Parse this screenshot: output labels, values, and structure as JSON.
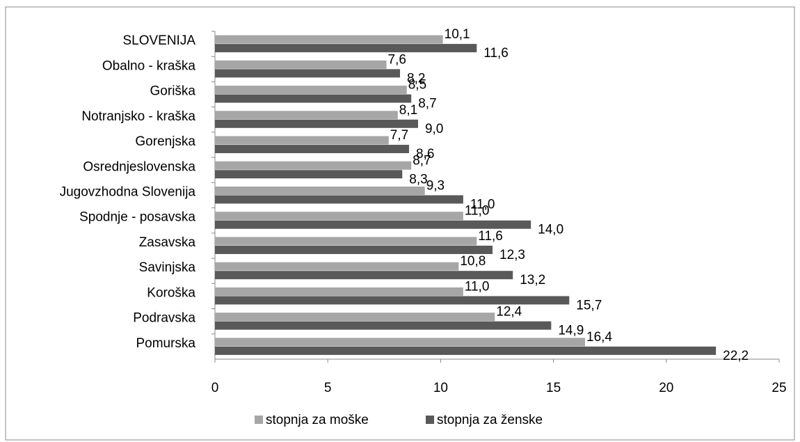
{
  "chart_data": {
    "type": "bar",
    "orientation": "horizontal",
    "categories": [
      "SLOVENIJA",
      "Obalno - kraška",
      "Goriška",
      "Notranjsko - kraška",
      "Gorenjska",
      "Osrednjeslovenska",
      "Jugovzhodna Slovenija",
      "Spodnje - posavska",
      "Zasavska",
      "Savinjska",
      "Koroška",
      "Podravska",
      "Pomurska"
    ],
    "series": [
      {
        "name": "stopnja za moške",
        "color": "#a6a6a6",
        "values": [
          10.1,
          7.6,
          8.5,
          8.1,
          7.7,
          8.7,
          9.3,
          11.0,
          11.6,
          10.8,
          11.0,
          12.4,
          16.4
        ],
        "value_labels": [
          "10,1",
          "7,6",
          "8,5",
          "8,1",
          "7,7",
          "8,7",
          "9,3",
          "11,0",
          "11,6",
          "10,8",
          "11,0",
          "12,4",
          "16,4"
        ]
      },
      {
        "name": "stopnja za ženske",
        "color": "#595959",
        "values": [
          11.6,
          8.2,
          8.7,
          9.0,
          8.6,
          8.3,
          11.0,
          14.0,
          12.3,
          13.2,
          15.7,
          14.9,
          22.2
        ],
        "value_labels": [
          "11,6",
          "8,2",
          "8,7",
          "9,0",
          "8,6",
          "8,3",
          "11,0",
          "14,0",
          "12,3",
          "13,2",
          "15,7",
          "14,9",
          "22,2"
        ]
      }
    ],
    "xlim": [
      0,
      25
    ],
    "xticks": [
      0,
      5,
      10,
      15,
      20,
      25
    ],
    "legend": "bottom"
  }
}
